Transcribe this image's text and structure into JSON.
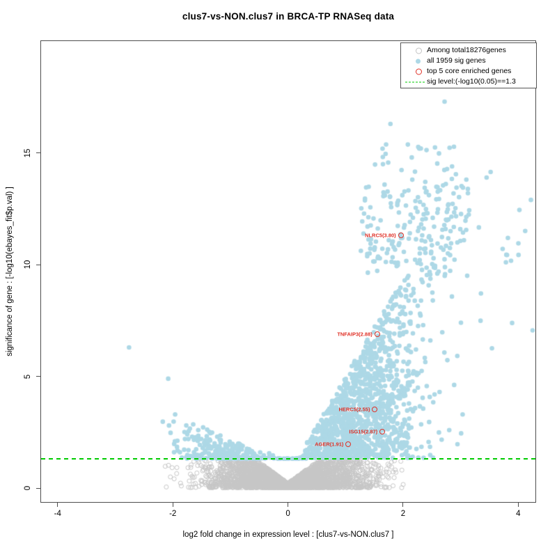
{
  "chart_data": {
    "type": "scatter",
    "title": "clus7-vs-NON.clus7 in BRCA-TP RNASeq data",
    "xlabel": "log2 fold change in expression level : [clus7-vs-NON.clus7 ]",
    "ylabel": "significance of gene : [-log10(ebayes_fit$p.val) ]",
    "xlim": [
      -4.3,
      4.31
    ],
    "ylim": [
      -0.65,
      20.04
    ],
    "xticks": [
      -4,
      -2,
      0,
      2,
      4
    ],
    "yticks": [
      0,
      5,
      10,
      15
    ],
    "grid": false,
    "sig_line": {
      "y": 1.3,
      "color": "#00CC00",
      "style": "dashed"
    },
    "legend": {
      "position": "top-right",
      "items": [
        {
          "label": "Among total18276genes",
          "marker": "open-circle",
          "color": "#c3c3c3"
        },
        {
          "label": "all 1959 sig genes",
          "marker": "filled-circle",
          "color": "#ADD8E6"
        },
        {
          "label": "top 5 core enriched genes",
          "marker": "open-circle",
          "color": "#e03127"
        },
        {
          "label": "sig level:(-log10(0.05)==1.3",
          "marker": "dashed-line",
          "color": "#00CC00"
        }
      ]
    },
    "highlighted_genes": [
      {
        "label": "NLRC5(3.80)",
        "x": 1.96,
        "y": 11.32
      },
      {
        "label": "TNFAIP3(2.88)",
        "x": 1.55,
        "y": 6.89
      },
      {
        "label": "HERC5(2.55)",
        "x": 1.51,
        "y": 3.52
      },
      {
        "label": "ISG15(2.87)",
        "x": 1.64,
        "y": 2.52
      },
      {
        "label": "AGER(1.91)",
        "x": 1.05,
        "y": 1.96
      }
    ],
    "totals": {
      "all_genes": 18276,
      "sig_genes": 1959
    },
    "point_style": {
      "nonsig_color": "#c6c6c6",
      "sig_color": "#ADD8E6",
      "highlight_color": "#e03127",
      "nonsig_radius": 3.0,
      "sig_radius": 3.3
    },
    "seed": 42,
    "clusters": [
      {
        "name": "nonsig-funnel",
        "series": "nonsig",
        "n": 3800,
        "x": {
          "dist": "normal",
          "mu": 0,
          "sigma": 0.65,
          "min": -2.45,
          "max": 2.25
        },
        "y": {
          "lo": 0.02,
          "base": 0.22,
          "slope": 1.9,
          "cap": 1.27,
          "pow": 1.5
        }
      },
      {
        "name": "sig-right-main",
        "series": "sig",
        "n": 1250,
        "x": {
          "dist": "normal",
          "mu": 1.3,
          "sigma": 0.6,
          "min": 0.3,
          "max": 3.3
        },
        "y": {
          "lo": 1.35,
          "base": 0.6,
          "slope": 4.4,
          "cap": 13.2,
          "pow": 1.25
        }
      },
      {
        "name": "sig-right-upper",
        "series": "sig",
        "n": 185,
        "x": {
          "dist": "uniform",
          "min": 1.25,
          "max": 3.15
        },
        "y": {
          "uniform": [
            9.5,
            13.6
          ]
        }
      },
      {
        "name": "sig-right-top-sparse",
        "series": "sig",
        "n": 26,
        "x": {
          "dist": "uniform",
          "min": 1.5,
          "max": 3.1
        },
        "y": {
          "uniform": [
            13.6,
            15.4
          ]
        }
      },
      {
        "name": "sig-far-right",
        "series": "sig",
        "n": 14,
        "x": {
          "dist": "uniform",
          "min": 3.3,
          "max": 4.3
        },
        "y": {
          "uniform": [
            6.0,
            13.1
          ]
        }
      },
      {
        "name": "sig-left",
        "series": "sig",
        "n": 235,
        "x": {
          "dist": "normal",
          "mu": -1.05,
          "sigma": 0.5,
          "min": -2.45,
          "max": -0.35
        },
        "y": {
          "lo": 1.32,
          "base": 1.05,
          "slope": 1.15,
          "cap": 4.7,
          "pow": 1.8
        }
      },
      {
        "name": "sig-center-low",
        "series": "sig",
        "n": 45,
        "x": {
          "dist": "uniform",
          "min": -0.35,
          "max": 0.42
        },
        "y": {
          "lo": 1.32,
          "base": 1.1,
          "slope": 1.5,
          "cap": 2.4,
          "pow": 2.2
        }
      }
    ],
    "outlier_points": [
      [
        2.72,
        17.3
      ],
      [
        1.78,
        16.3
      ],
      [
        2.28,
        15.2
      ],
      [
        2.15,
        14.8
      ],
      [
        2.85,
        14.4
      ],
      [
        3.45,
        13.9
      ],
      [
        3.52,
        14.15
      ],
      [
        4.22,
        12.9
      ],
      [
        4.02,
        12.45
      ],
      [
        3.82,
        11.2
      ],
      [
        -2.76,
        6.3
      ],
      [
        -2.08,
        4.9
      ]
    ]
  }
}
